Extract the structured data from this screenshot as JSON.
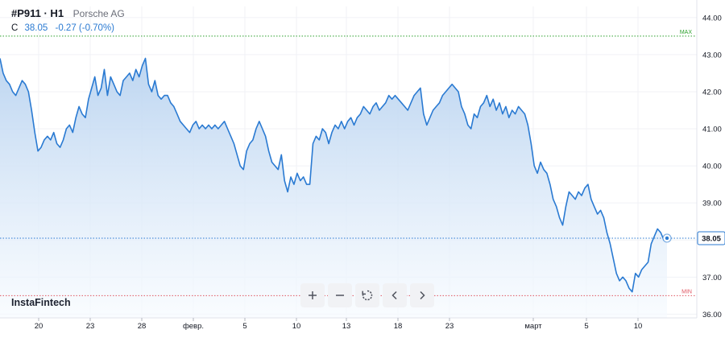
{
  "header": {
    "symbol": "#P911 · H1",
    "name": "Porsche AG"
  },
  "quote": {
    "label": "C",
    "close": "38.05",
    "change": "-0.27 (-0.70%)"
  },
  "brand": "InstaFintech",
  "colors": {
    "line": "#2a7ad2",
    "fill_top": "#b9d3f0",
    "fill_bottom": "#f7fbff",
    "max_line": "#2ca02c",
    "min_line": "#e05561",
    "last_line": "#2a7ad2"
  },
  "toolbar": {
    "zoom_in": "plus-icon",
    "zoom_out": "minus-icon",
    "reset": "reset-icon",
    "back": "chevron-left-icon",
    "forward": "chevron-right-icon"
  },
  "chart_data": {
    "type": "area",
    "ylim": [
      35.9,
      44.3
    ],
    "y_ticks": [
      "44.00",
      "43.00",
      "42.00",
      "41.00",
      "40.00",
      "39.00",
      "38.00",
      "37.00",
      "36.00"
    ],
    "x_ticks": [
      "20",
      "23",
      "28",
      "февр.",
      "5",
      "10",
      "13",
      "18",
      "23",
      "март",
      "5",
      "10"
    ],
    "max_label": "MAX",
    "min_label": "MIN",
    "max_value": 43.5,
    "min_value": 36.5,
    "last_value": 38.05,
    "last_label": "38.05",
    "grid": true,
    "series": [
      {
        "values": [
          42.9,
          42.5,
          42.3,
          42.2,
          42.0,
          41.9,
          42.1,
          42.3,
          42.2,
          42.0,
          41.5,
          40.9,
          40.4,
          40.5,
          40.7,
          40.8,
          40.7,
          40.9,
          40.6,
          40.5,
          40.7,
          41.0,
          41.1,
          40.9,
          41.3,
          41.6,
          41.4,
          41.3,
          41.8,
          42.1,
          42.4,
          41.9,
          42.1,
          42.6,
          41.9,
          42.4,
          42.2,
          42.0,
          41.9,
          42.3,
          42.4,
          42.5,
          42.3,
          42.6,
          42.4,
          42.7,
          42.9,
          42.2,
          42.0,
          42.3,
          41.9,
          41.8,
          41.9,
          41.9,
          41.7,
          41.6,
          41.4,
          41.2,
          41.1,
          41.0,
          40.9,
          41.1,
          41.2,
          41.0,
          41.1,
          41.0,
          41.1,
          41.0,
          41.1,
          41.0,
          41.1,
          41.2,
          41.0,
          40.8,
          40.6,
          40.3,
          40.0,
          39.9,
          40.4,
          40.6,
          40.7,
          41.0,
          41.2,
          41.0,
          40.8,
          40.4,
          40.1,
          40.0,
          39.9,
          40.3,
          39.6,
          39.3,
          39.7,
          39.5,
          39.8,
          39.6,
          39.7,
          39.5,
          39.5,
          40.6,
          40.8,
          40.7,
          41.0,
          40.9,
          40.6,
          40.9,
          41.1,
          41.0,
          41.2,
          41.0,
          41.2,
          41.3,
          41.1,
          41.3,
          41.4,
          41.6,
          41.5,
          41.4,
          41.6,
          41.7,
          41.5,
          41.6,
          41.7,
          41.9,
          41.8,
          41.9,
          41.8,
          41.7,
          41.6,
          41.5,
          41.7,
          41.9,
          42.0,
          42.1,
          41.4,
          41.1,
          41.3,
          41.5,
          41.6,
          41.7,
          41.9,
          42.0,
          42.1,
          42.2,
          42.1,
          42.0,
          41.6,
          41.4,
          41.1,
          41.0,
          41.4,
          41.3,
          41.6,
          41.7,
          41.9,
          41.6,
          41.8,
          41.5,
          41.7,
          41.4,
          41.6,
          41.3,
          41.5,
          41.4,
          41.6,
          41.5,
          41.4,
          41.1,
          40.6,
          40.0,
          39.8,
          40.1,
          39.9,
          39.8,
          39.5,
          39.1,
          38.9,
          38.6,
          38.4,
          38.9,
          39.3,
          39.2,
          39.1,
          39.3,
          39.2,
          39.4,
          39.5,
          39.1,
          38.9,
          38.7,
          38.8,
          38.6,
          38.2,
          37.9,
          37.5,
          37.1,
          36.9,
          37.0,
          36.9,
          36.7,
          36.6,
          37.1,
          37.0,
          37.2,
          37.3,
          37.4,
          37.9,
          38.1,
          38.3,
          38.2,
          38.0,
          38.05
        ]
      }
    ]
  }
}
